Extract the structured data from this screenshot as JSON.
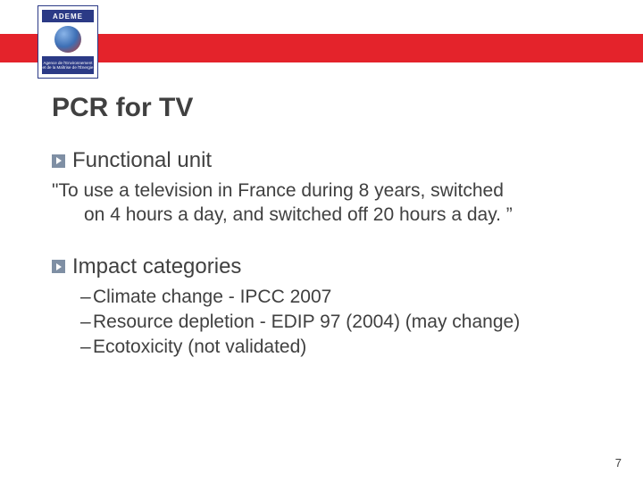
{
  "colors": {
    "brand_red": "#e4232b",
    "logo_blue": "#2b3a86",
    "text_gray": "#404040",
    "bullet_bg": "#7f8fa4",
    "background": "#ffffff"
  },
  "typography": {
    "title_fontsize": 30,
    "bullet_label_fontsize": 24,
    "body_fontsize": 21,
    "pagenum_fontsize": 13,
    "font_family": "Arial"
  },
  "header": {
    "logo": {
      "top_text": "ADEME",
      "caption": "Agence de l'Environnement et de la Maîtrise de l'Énergie"
    }
  },
  "title": "PCR for TV",
  "sections": [
    {
      "heading": "Functional unit",
      "body_first_line": "\"To use a television in France during 8 years, switched",
      "body_rest": "on 4 hours a day, and switched off 20 hours a day. ”",
      "items": []
    },
    {
      "heading": "Impact categories",
      "body_first_line": "",
      "body_rest": "",
      "items": [
        "Climate change - IPCC 2007",
        "Resource depletion - EDIP 97 (2004) (may change)",
        "Ecotoxicity (not validated)"
      ]
    }
  ],
  "page_number": "7"
}
